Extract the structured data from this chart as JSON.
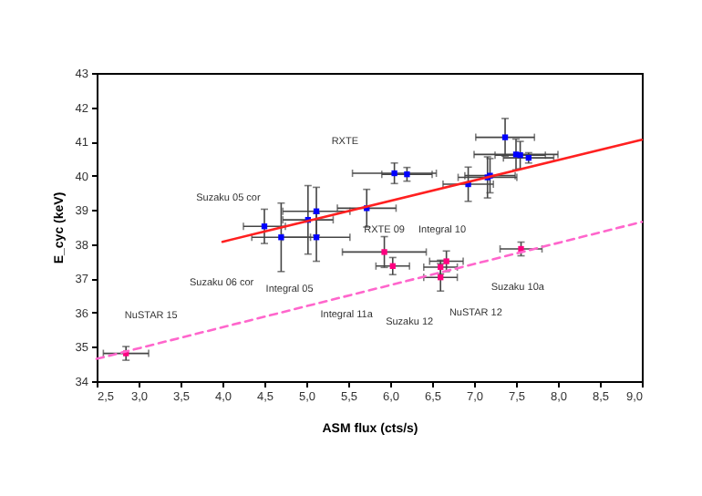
{
  "chart_data": {
    "type": "scatter",
    "xlabel": "ASM flux  (cts/s)",
    "ylabel": "E_cyc (keV)",
    "xlim": [
      2.5,
      9.0
    ],
    "ylim": [
      34,
      43
    ],
    "xticks": [
      {
        "value": 2.5,
        "label": "2,5"
      },
      {
        "value": 3.0,
        "label": "3,0"
      },
      {
        "value": 3.5,
        "label": "3,5"
      },
      {
        "value": 4.0,
        "label": "4,0"
      },
      {
        "value": 4.5,
        "label": "4,5"
      },
      {
        "value": 5.0,
        "label": "5,0"
      },
      {
        "value": 5.5,
        "label": "5,5"
      },
      {
        "value": 6.0,
        "label": "6,0"
      },
      {
        "value": 6.5,
        "label": "6,5"
      },
      {
        "value": 7.0,
        "label": "7,0"
      },
      {
        "value": 7.5,
        "label": "7,5"
      },
      {
        "value": 8.0,
        "label": "8,0"
      },
      {
        "value": 8.5,
        "label": "8,5"
      },
      {
        "value": 9.0,
        "label": "9,0"
      }
    ],
    "yticks": [
      34,
      35,
      36,
      37,
      38,
      39,
      40,
      41,
      42,
      43
    ],
    "grid": false,
    "series": [
      {
        "type": "scatter",
        "marker": "square",
        "color": "#0000ff",
        "x": [
          4.5,
          4.7,
          5.02,
          5.12,
          5.12,
          5.72,
          6.05,
          6.2,
          6.93,
          7.16,
          7.19,
          7.37,
          7.5,
          7.55,
          7.65
        ],
        "values": [
          38.52,
          38.2,
          38.71,
          38.96,
          38.2,
          39.05,
          40.07,
          40.04,
          39.75,
          39.95,
          40.0,
          41.12,
          40.62,
          40.6,
          40.52
        ],
        "errors": [
          0.5,
          1.0,
          1.0,
          0.7,
          0.7,
          0.55,
          0.3,
          0.2,
          0.5,
          0.6,
          0.5,
          0.55,
          0.45,
          0.4,
          0.15
        ],
        "xerrors": [
          0.25,
          0.35,
          0.3,
          0.4,
          0.4,
          0.35,
          0.5,
          0.3,
          0.3,
          0.35,
          0.3,
          0.35,
          0.5,
          0.3,
          0.3
        ]
      },
      {
        "type": "scatter",
        "marker": "square",
        "color": "#ff0080",
        "x": [
          2.85,
          5.93,
          6.03,
          6.67,
          6.6,
          6.6,
          7.56
        ],
        "values": [
          34.81,
          37.77,
          37.36,
          37.5,
          37.33,
          37.03,
          37.86
        ],
        "errors": [
          0.2,
          0.45,
          0.25,
          0.3,
          0.2,
          0.4,
          0.2
        ],
        "xerrors": [
          0.27,
          0.5,
          0.2,
          0.2,
          0.2,
          0.2,
          0.25
        ]
      },
      {
        "type": "line",
        "color": "#ff2020",
        "line_style": "solid",
        "x": [
          4.0,
          9.0
        ],
        "values": [
          38.07,
          41.05
        ]
      },
      {
        "type": "line",
        "color": "#ff66cc",
        "line_style": "dashed",
        "x": [
          2.5,
          9.0
        ],
        "values": [
          34.65,
          38.65
        ]
      }
    ],
    "annotations": [
      "RXTE",
      "Suzaku 05 cor",
      "Suzaku 06 cor",
      "Integral 05",
      "NuSTAR 15",
      "RXTE 09",
      "Integral 10",
      "Integral  11a",
      "Suzaku 12",
      "NuSTAR 12",
      "Suzaku 10a"
    ]
  }
}
